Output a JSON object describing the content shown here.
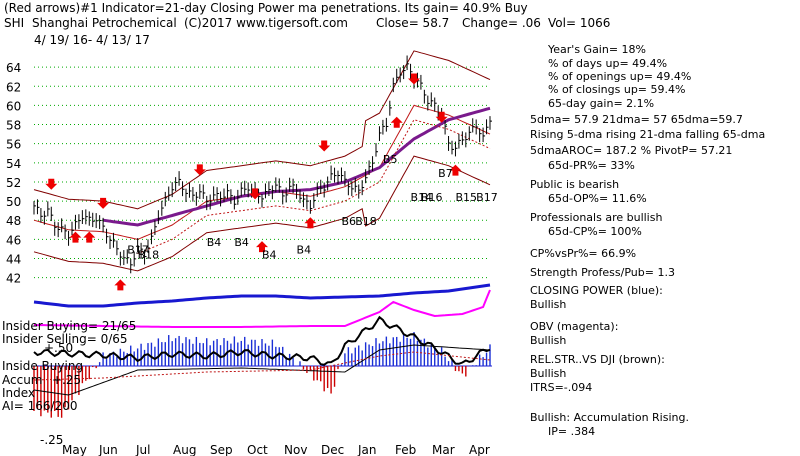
{
  "header": {
    "line1": "(Red arrows)#1 Indicator=21-day Closing Power ma penetrations. Its gain= 40.9% Buy",
    "ticker": "SHI",
    "company": "Shanghai Petrochemical",
    "copyright": "(C)2017 www.tigersoft.com",
    "close": "Close=  58.7",
    "change": "Change= .06",
    "vol": "Vol= 1066",
    "date_range": "4/ 19/ 16- 4/ 13/ 17"
  },
  "chart_data": {
    "type": "line",
    "title": "SHI Shanghai Petrochemical",
    "x_months": [
      "May",
      "Jun",
      "Jul",
      "Aug",
      "Sep",
      "Oct",
      "Nov",
      "Dec",
      "Jan",
      "Feb",
      "Mar",
      "Apr"
    ],
    "y_ticks": [
      42,
      44,
      46,
      48,
      50,
      52,
      54,
      56,
      58,
      60,
      62,
      64
    ],
    "ylim": [
      40.5,
      66
    ],
    "price_series": [
      [
        0,
        49.5
      ],
      [
        2,
        48.5
      ],
      [
        4,
        49
      ],
      [
        6,
        47.5
      ],
      [
        8,
        47
      ],
      [
        10,
        46.5
      ],
      [
        12,
        47.5
      ],
      [
        14,
        48.5
      ],
      [
        16,
        48
      ],
      [
        18,
        48.2
      ],
      [
        20,
        47.2
      ],
      [
        22,
        46
      ],
      [
        24,
        45
      ],
      [
        26,
        44
      ],
      [
        28,
        43.5
      ],
      [
        30,
        45
      ],
      [
        32,
        44.5
      ],
      [
        34,
        46
      ],
      [
        36,
        48.5
      ],
      [
        38,
        50
      ],
      [
        40,
        51.5
      ],
      [
        42,
        52
      ],
      [
        44,
        51
      ],
      [
        46,
        50.5
      ],
      [
        48,
        51
      ],
      [
        50,
        50
      ],
      [
        52,
        50.5
      ],
      [
        54,
        50.5
      ],
      [
        56,
        50.8
      ],
      [
        58,
        50
      ],
      [
        60,
        51
      ],
      [
        62,
        51.5
      ],
      [
        64,
        50.8
      ],
      [
        66,
        50.5
      ],
      [
        68,
        51
      ],
      [
        70,
        51.8
      ],
      [
        72,
        50.5
      ],
      [
        74,
        51.5
      ],
      [
        76,
        51.2
      ],
      [
        78,
        50
      ],
      [
        80,
        49.5
      ],
      [
        82,
        51
      ],
      [
        84,
        51.5
      ],
      [
        86,
        52.5
      ],
      [
        88,
        53
      ],
      [
        90,
        52
      ],
      [
        92,
        51.5
      ],
      [
        94,
        51
      ],
      [
        96,
        52.5
      ],
      [
        98,
        54
      ],
      [
        100,
        57
      ],
      [
        102,
        58
      ],
      [
        104,
        62
      ],
      [
        106,
        63.5
      ],
      [
        108,
        64
      ],
      [
        110,
        63
      ],
      [
        112,
        62
      ],
      [
        114,
        60.5
      ],
      [
        116,
        60
      ],
      [
        118,
        59
      ],
      [
        120,
        56
      ],
      [
        122,
        55.5
      ],
      [
        124,
        56.5
      ],
      [
        126,
        57
      ],
      [
        128,
        58
      ],
      [
        130,
        56.5
      ],
      [
        132,
        58.7
      ]
    ],
    "ma21": [
      [
        0,
        48
      ],
      [
        10,
        47
      ],
      [
        20,
        46.8
      ],
      [
        30,
        46
      ],
      [
        40,
        47.5
      ],
      [
        50,
        50
      ],
      [
        60,
        50.5
      ],
      [
        70,
        51
      ],
      [
        80,
        50.5
      ],
      [
        90,
        51.5
      ],
      [
        100,
        53.5
      ],
      [
        110,
        60
      ],
      [
        120,
        59
      ],
      [
        132,
        57
      ]
    ],
    "ma65": [
      [
        0,
        48.5
      ],
      [
        20,
        48
      ],
      [
        30,
        47.5
      ],
      [
        40,
        48.5
      ],
      [
        50,
        49.5
      ],
      [
        60,
        50.5
      ],
      [
        70,
        51
      ],
      [
        80,
        51.2
      ],
      [
        90,
        52
      ],
      [
        100,
        53.5
      ],
      [
        110,
        56.5
      ],
      [
        120,
        58.5
      ],
      [
        132,
        59.7
      ]
    ],
    "closing_power_label": "CLOSING POWER (blue)",
    "obv_label": "OBV (magenta)",
    "rel_str_label": "REL.STR..VS DJI (brown)",
    "insider_buying": "Insider Buying= 21/65",
    "insider_selling": "Insider Selling= 0/65",
    "inside_buying_label": "Inside Buying",
    "accum_label": "Accum",
    "index_label": "Index",
    "ai": "AI= 166/200",
    "accum_ticks": [
      "+.50",
      "+.25",
      "-.25"
    ],
    "signals": [
      "B5",
      "B7",
      "B15",
      "B17",
      "B18",
      "B6",
      "B4",
      "B14",
      "B16"
    ]
  },
  "stats": {
    "years_gain": "Year's Gain= 18%",
    "days_up": "% of days up= 49.4%",
    "openings_up": "% of openings up= 49.4%",
    "closings_up": "% of closings up= 59.4%",
    "gain65": "65-day gain= 2.1%",
    "dma": "5dma= 57.9  21dma= 57  65dma=59.7",
    "rising": "Rising 5-dma rising 21-dma falling 65-dma",
    "aroc": "5dmaAROC= 187.2 %  PivotP= 57.21",
    "pr": "65d-PR%= 33%",
    "public": "Public is bearish",
    "op": "65d-OP%= 11.6%",
    "professionals": "Professionals are bullish",
    "cp": "65d-CP%= 100%",
    "cpvspr": "CP%vsPr%=  66.9%",
    "strength": "Strength Profess/Pub= 1.3",
    "closing_power": "CLOSING POWER (blue):",
    "closing_power_val": "Bullish",
    "obv": "OBV (magenta):",
    "obv_val": "Bullish",
    "relstr": "REL.STR..VS DJI (brown):",
    "relstr_val": "Bullish",
    "itrs": "ITRS=-.094",
    "accum": "Bullish: Accumulation Rising.",
    "ip": "IP=  .384"
  },
  "colors": {
    "price": "#000000",
    "band": "#800000",
    "ma65": "#7a1a8c",
    "closing_power": "#1818d0",
    "obv": "#ff00ff",
    "accum_pos": "#1a2fd6",
    "accum_neg": "#cc0000",
    "arrow": "#ee0000",
    "grid": "#00aa00"
  }
}
